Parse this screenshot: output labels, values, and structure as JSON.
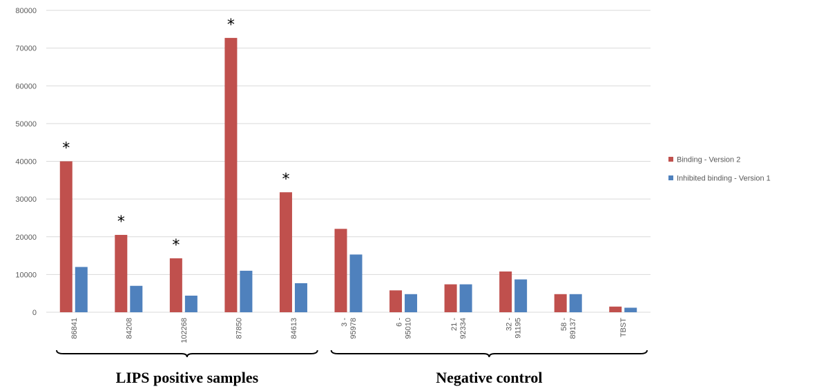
{
  "chart_data": {
    "type": "bar",
    "categories": [
      [
        "86841"
      ],
      [
        "84208"
      ],
      [
        "102268"
      ],
      [
        "87850"
      ],
      [
        "84613"
      ],
      [
        "3 -",
        "95978"
      ],
      [
        "6 -",
        "95010"
      ],
      [
        "21 -",
        "92334"
      ],
      [
        "32 -",
        "91195"
      ],
      [
        "58 -",
        "89137"
      ],
      [
        "TBST"
      ]
    ],
    "series": [
      {
        "name": "Binding - Version 2",
        "color": "#c0504d",
        "values": [
          40000,
          20500,
          14300,
          72700,
          31800,
          22100,
          5800,
          7400,
          10800,
          4800,
          1500
        ]
      },
      {
        "name": "Inhibited binding - Version 1",
        "color": "#4f81bd",
        "values": [
          12000,
          7000,
          4400,
          11000,
          7700,
          15300,
          4800,
          7400,
          8700,
          4800,
          1200
        ]
      }
    ],
    "ylim": [
      0,
      80000
    ],
    "yticks": [
      0,
      10000,
      20000,
      30000,
      40000,
      50000,
      60000,
      70000,
      80000
    ],
    "grid": true,
    "legend_position": "right",
    "annotations": {
      "marker": "*",
      "categories_marked": [
        0,
        1,
        2,
        3,
        4
      ]
    },
    "groups": [
      {
        "label": "LIPS positive samples",
        "from": 0,
        "to": 4
      },
      {
        "label": "Negative control",
        "from": 5,
        "to": 10
      }
    ]
  }
}
